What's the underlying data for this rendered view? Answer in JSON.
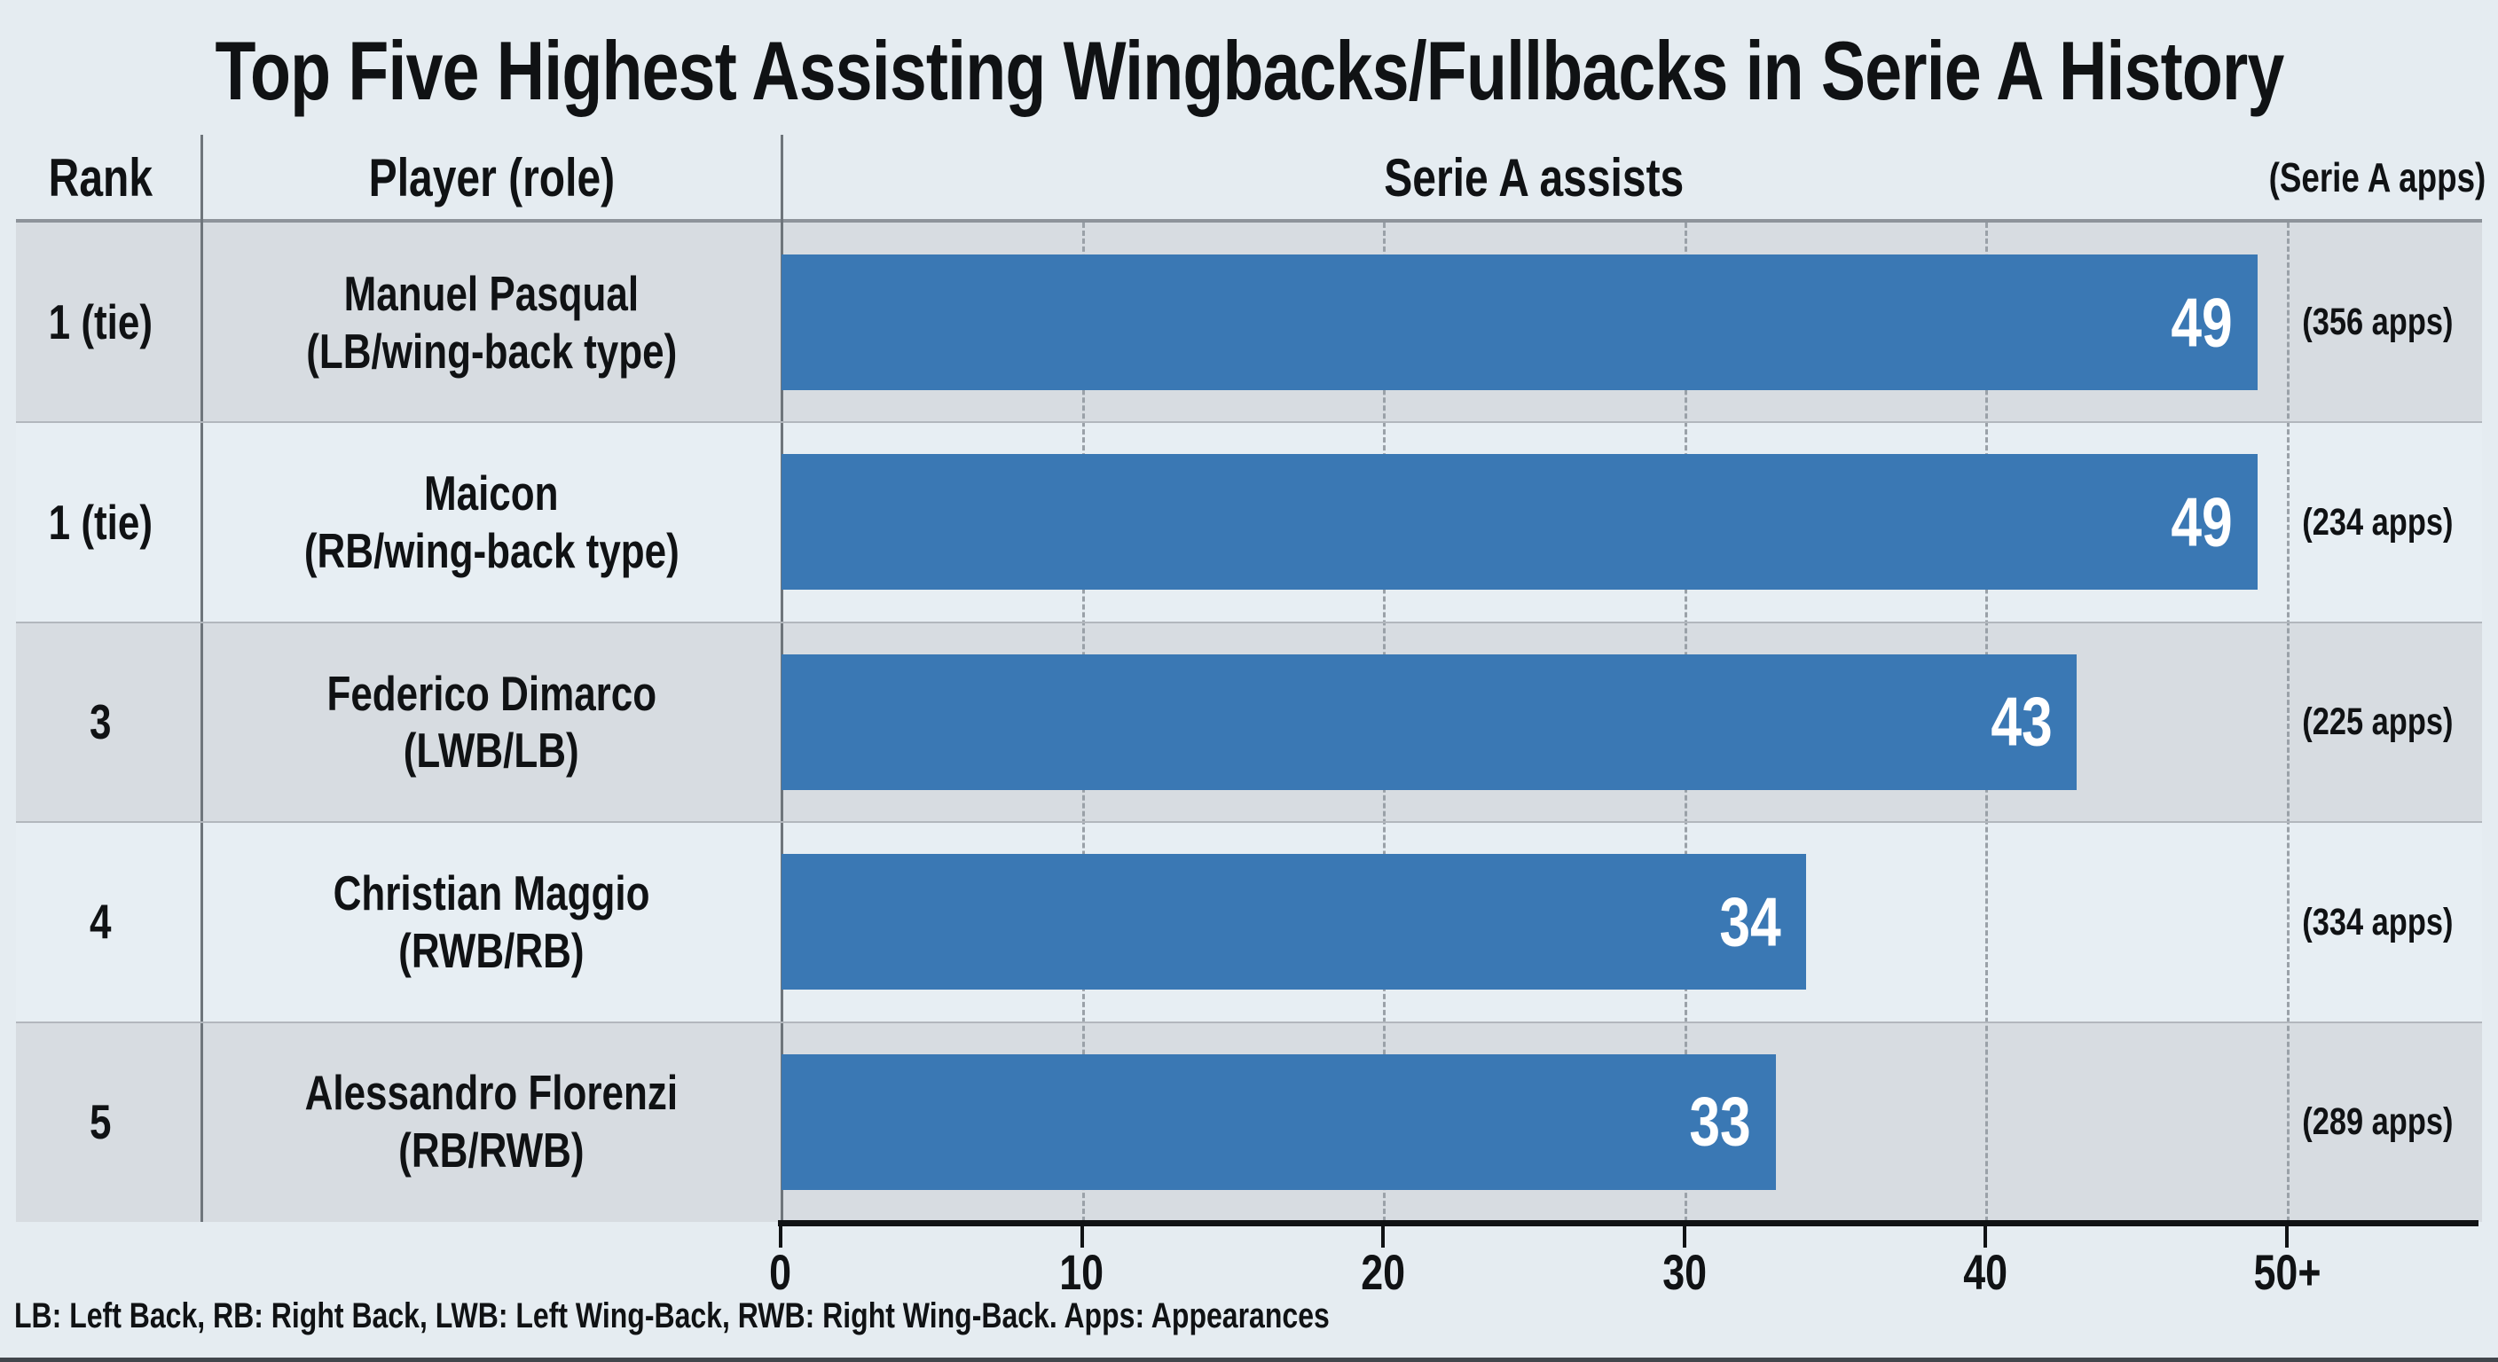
{
  "title": "Top Five Highest Assisting Wingbacks/Fullbacks in Serie A History",
  "header": {
    "rank": "Rank",
    "player": "Player (role)",
    "assists": "Serie A assists",
    "apps": "(Serie A apps)"
  },
  "footer": "LB: Left Back, RB: Right Back, LWB: Left Wing-Back, RWB: Right Wing-Back. Apps: Appearances",
  "colors": {
    "bar": "#3a78b4",
    "band_dark": "#d7dce1",
    "band_light": "#e7eef3",
    "background": "#e5ecf1",
    "axis": "#101214"
  },
  "chart_data": {
    "type": "bar",
    "orientation": "horizontal",
    "title": "Top Five Highest Assisting Wingbacks/Fullbacks in Serie A History",
    "value_label": "Serie A assists",
    "xlim": [
      0,
      50
    ],
    "xticks": [
      "0",
      "10",
      "20",
      "30",
      "40",
      "50+"
    ],
    "grid": "vertical-dashed",
    "legend_position": "none",
    "rows": [
      {
        "rank": "1 (tie)",
        "player": "Manuel Pasqual",
        "role": "(LB/wing-back type)",
        "assists": 49,
        "apps_label": "(356 apps)"
      },
      {
        "rank": "1 (tie)",
        "player": "Maicon",
        "role": "(RB/wing-back type)",
        "assists": 49,
        "apps_label": "(234 apps)"
      },
      {
        "rank": "3",
        "player": "Federico Dimarco",
        "role": "(LWB/LB)",
        "assists": 43,
        "apps_label": "(225 apps)"
      },
      {
        "rank": "4",
        "player": "Christian Maggio",
        "role": "(RWB/RB)",
        "assists": 34,
        "apps_label": "(334 apps)"
      },
      {
        "rank": "5",
        "player": "Alessandro Florenzi",
        "role": "(RB/RWB)",
        "assists": 33,
        "apps_label": "(289 apps)"
      }
    ]
  }
}
